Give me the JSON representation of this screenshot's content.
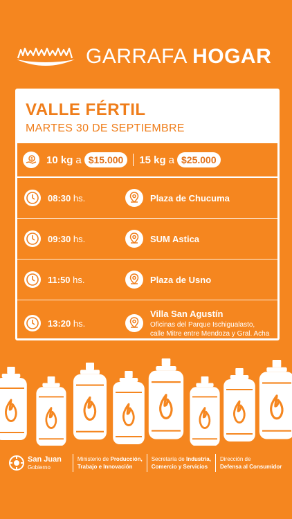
{
  "header": {
    "brand_light": "GARRAFA",
    "brand_bold": "HOGAR",
    "logo_icon": "flames-icon"
  },
  "event": {
    "location": "VALLE FÉRTIL",
    "date": "MARTES 30 DE SEPTIEMBRE"
  },
  "prices": {
    "icon": "money-hand-icon",
    "p1_weight": "10 kg",
    "p1_sep": "a",
    "p1_price": "$15.000",
    "p2_weight": "15 kg",
    "p2_sep": "a",
    "p2_price": "$25.000"
  },
  "schedule": [
    {
      "time": "08:30",
      "unit": "hs.",
      "place": "Plaza de Chucuma",
      "sub1": "",
      "sub2": ""
    },
    {
      "time": "09:30",
      "unit": "hs.",
      "place": "SUM Astica",
      "sub1": "",
      "sub2": ""
    },
    {
      "time": "11:50",
      "unit": "hs.",
      "place": "Plaza de Usno",
      "sub1": "",
      "sub2": ""
    },
    {
      "time": "13:20",
      "unit": "hs.",
      "place": "Villa San Agustín",
      "sub1": "Oficinas del Parque Ischigualasto,",
      "sub2": "calle Mitre entre Mendoza y Gral. Acha"
    }
  ],
  "footer": {
    "gov_name": "San Juan",
    "gov_sub": "Gobierno",
    "m1_a": "Ministerio de ",
    "m1_b": "Producción,",
    "m1_c": "Trabajo e Innovación",
    "m2_a": "Secretaría de ",
    "m2_b": "Industria,",
    "m2_c": "Comercio y Servicios",
    "m3_a": "Dirección de",
    "m3_c": "Defensa al Consumidor"
  },
  "colors": {
    "background": "#f5861f",
    "accent": "#ef7d1a",
    "white": "#ffffff"
  }
}
